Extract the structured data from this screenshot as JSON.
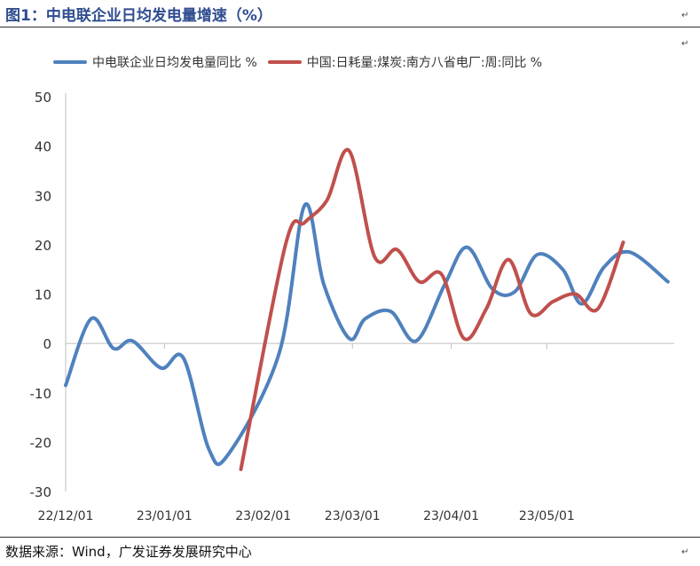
{
  "header": {
    "title": "图1：中电联企业日均发电量增速（%）"
  },
  "footer": {
    "source": "数据来源：Wind，广发证券发展研究中心"
  },
  "marks": {
    "paragraph": "↵"
  },
  "colors": {
    "series_blue": "#4f81bd",
    "series_red": "#c0504d",
    "title_blue": "#2f4d8f"
  },
  "chart_data": {
    "type": "line",
    "title": "",
    "xlabel": "",
    "ylabel": "",
    "ylim": [
      -30,
      50
    ],
    "yticks": [
      50,
      40,
      30,
      20,
      10,
      0,
      -10,
      -20,
      -30
    ],
    "xlim": [
      "2022-12-01",
      "2023-06-10"
    ],
    "x_tick_labels": [
      "22/12/01",
      "23/01/01",
      "23/02/01",
      "23/03/01",
      "23/04/01",
      "23/05/01"
    ],
    "x_tick_dates": [
      "2022-12-01",
      "2023-01-01",
      "2023-02-01",
      "2023-03-01",
      "2023-04-01",
      "2023-05-01"
    ],
    "grid": false,
    "legend_position": "top",
    "series": [
      {
        "name": "中电联企业日均发电量同比 %",
        "color": "#4f81bd",
        "points": [
          {
            "x": "2022-12-01",
            "y": -8.5
          },
          {
            "x": "2022-12-09",
            "y": 5
          },
          {
            "x": "2022-12-16",
            "y": -1
          },
          {
            "x": "2022-12-22",
            "y": 0.5
          },
          {
            "x": "2022-12-31",
            "y": -5
          },
          {
            "x": "2023-01-07",
            "y": -3
          },
          {
            "x": "2023-01-15",
            "y": -21.5
          },
          {
            "x": "2023-01-21",
            "y": -22.5
          },
          {
            "x": "2023-02-06",
            "y": -2
          },
          {
            "x": "2023-02-14",
            "y": 28
          },
          {
            "x": "2023-02-20",
            "y": 12
          },
          {
            "x": "2023-02-28",
            "y": 1
          },
          {
            "x": "2023-03-05",
            "y": 5
          },
          {
            "x": "2023-03-13",
            "y": 6.5
          },
          {
            "x": "2023-03-21",
            "y": 0.5
          },
          {
            "x": "2023-03-30",
            "y": 12
          },
          {
            "x": "2023-04-06",
            "y": 19.5
          },
          {
            "x": "2023-04-14",
            "y": 11
          },
          {
            "x": "2023-04-21",
            "y": 10.5
          },
          {
            "x": "2023-04-28",
            "y": 18
          },
          {
            "x": "2023-05-06",
            "y": 15
          },
          {
            "x": "2023-05-12",
            "y": 8
          },
          {
            "x": "2023-05-19",
            "y": 15.5
          },
          {
            "x": "2023-05-27",
            "y": 18.5
          },
          {
            "x": "2023-06-08",
            "y": 12.5
          }
        ]
      },
      {
        "name": "中国:日耗量:煤炭:南方八省电厂:周:同比 %",
        "color": "#c0504d",
        "points": [
          {
            "x": "2023-01-25",
            "y": -25.5
          },
          {
            "x": "2023-02-08",
            "y": 20
          },
          {
            "x": "2023-02-14",
            "y": 24.5
          },
          {
            "x": "2023-02-21",
            "y": 29
          },
          {
            "x": "2023-02-28",
            "y": 39
          },
          {
            "x": "2023-03-08",
            "y": 17.5
          },
          {
            "x": "2023-03-15",
            "y": 19
          },
          {
            "x": "2023-03-22",
            "y": 12.5
          },
          {
            "x": "2023-03-29",
            "y": 14
          },
          {
            "x": "2023-04-05",
            "y": 1
          },
          {
            "x": "2023-04-12",
            "y": 7
          },
          {
            "x": "2023-04-19",
            "y": 17
          },
          {
            "x": "2023-04-26",
            "y": 6
          },
          {
            "x": "2023-05-03",
            "y": 8.5
          },
          {
            "x": "2023-05-10",
            "y": 10
          },
          {
            "x": "2023-05-17",
            "y": 7
          },
          {
            "x": "2023-05-25",
            "y": 20.5
          }
        ]
      }
    ]
  }
}
